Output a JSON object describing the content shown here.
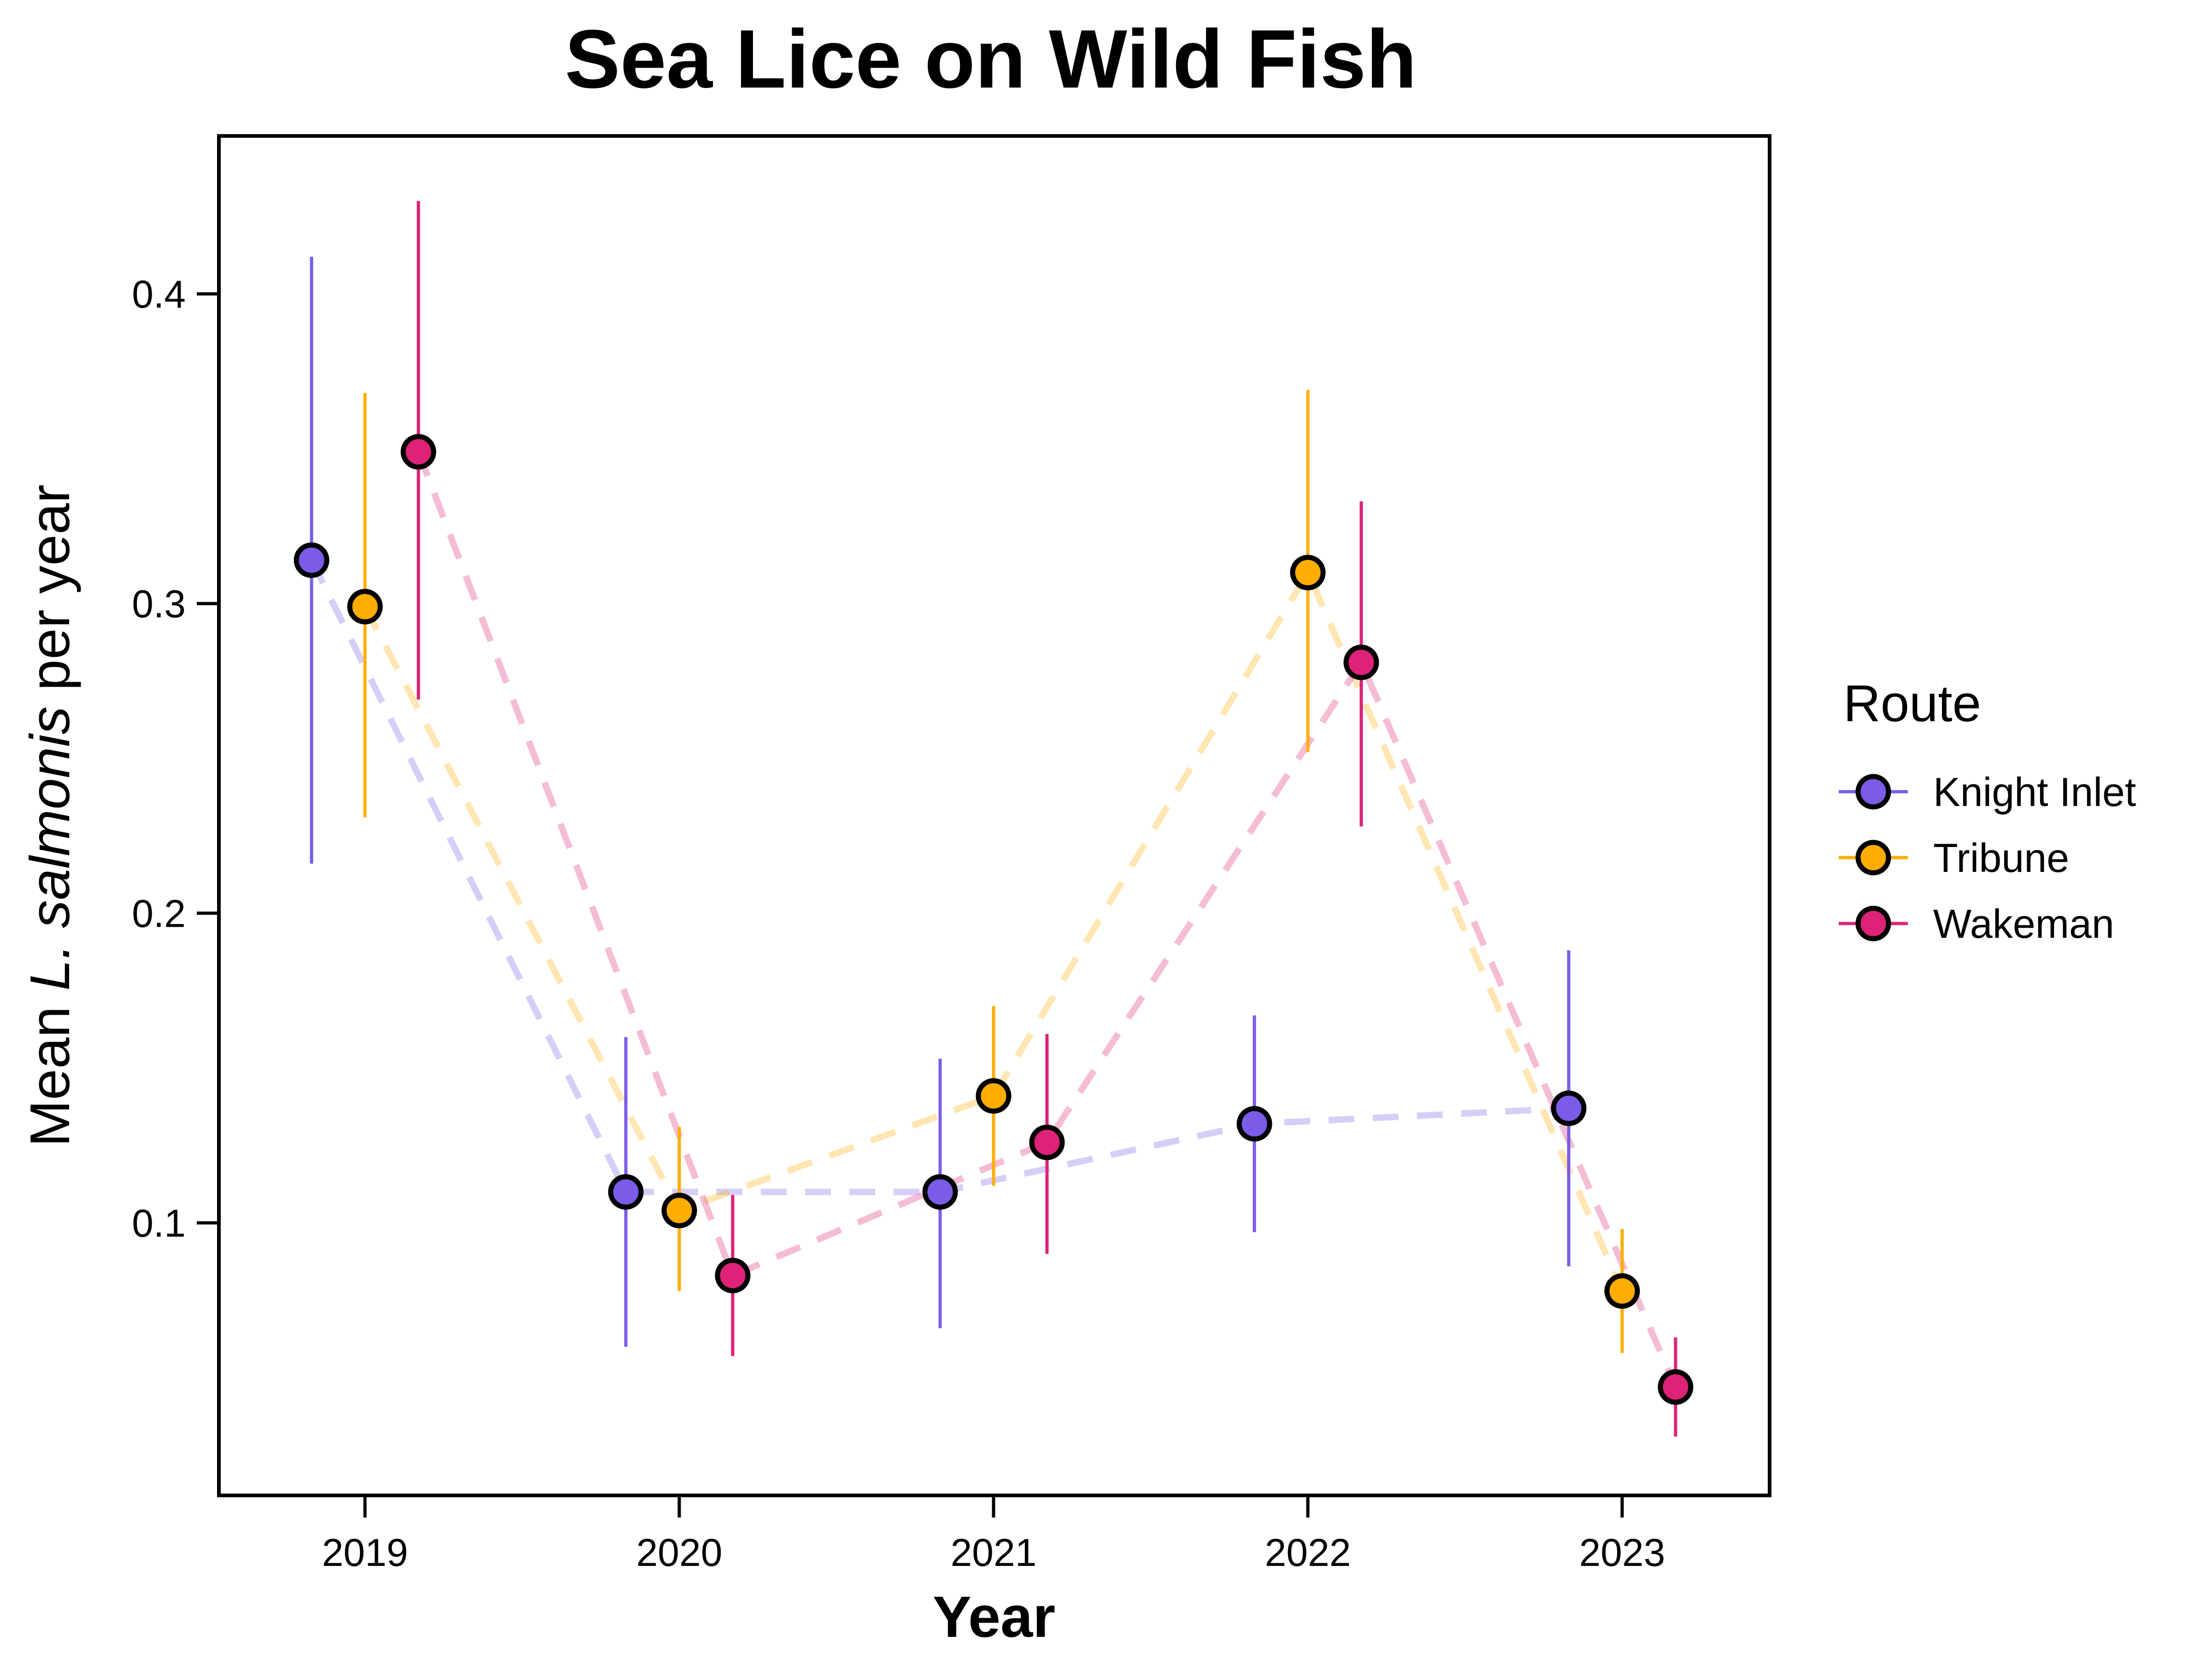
{
  "chart_data": {
    "type": "scatter",
    "title": "Sea Lice on Wild Fish",
    "xlabel": "Year",
    "ylabel_parts": [
      "Mean ",
      "L. salmonis",
      " per year"
    ],
    "categories": [
      "2019",
      "2020",
      "2021",
      "2022",
      "2023"
    ],
    "ylim": [
      0.012,
      0.451
    ],
    "yticks": [
      "0.1",
      "0.2",
      "0.3",
      "0.4"
    ],
    "grid": false,
    "legend": {
      "title": "Route",
      "position": "right"
    },
    "series": [
      {
        "name": "Knight Inlet",
        "color": "#7b5ce8",
        "offset": -0.17,
        "values": [
          0.314,
          0.11,
          0.11,
          0.132,
          0.137
        ],
        "lower": [
          0.216,
          0.06,
          0.066,
          0.097,
          0.086
        ],
        "upper": [
          0.412,
          0.16,
          0.153,
          0.167,
          0.188
        ]
      },
      {
        "name": "Tribune",
        "color": "#ffad00",
        "offset": 0,
        "values": [
          0.299,
          0.104,
          0.141,
          0.31,
          0.078
        ],
        "lower": [
          0.231,
          0.078,
          0.112,
          0.252,
          0.058
        ],
        "upper": [
          0.368,
          0.131,
          0.17,
          0.369,
          0.098
        ]
      },
      {
        "name": "Wakeman",
        "color": "#dd2277",
        "offset": 0.17,
        "values": [
          0.349,
          0.083,
          0.126,
          0.281,
          0.047
        ],
        "lower": [
          0.269,
          0.057,
          0.09,
          0.228,
          0.031
        ],
        "upper": [
          0.43,
          0.109,
          0.161,
          0.333,
          0.063
        ]
      }
    ]
  }
}
